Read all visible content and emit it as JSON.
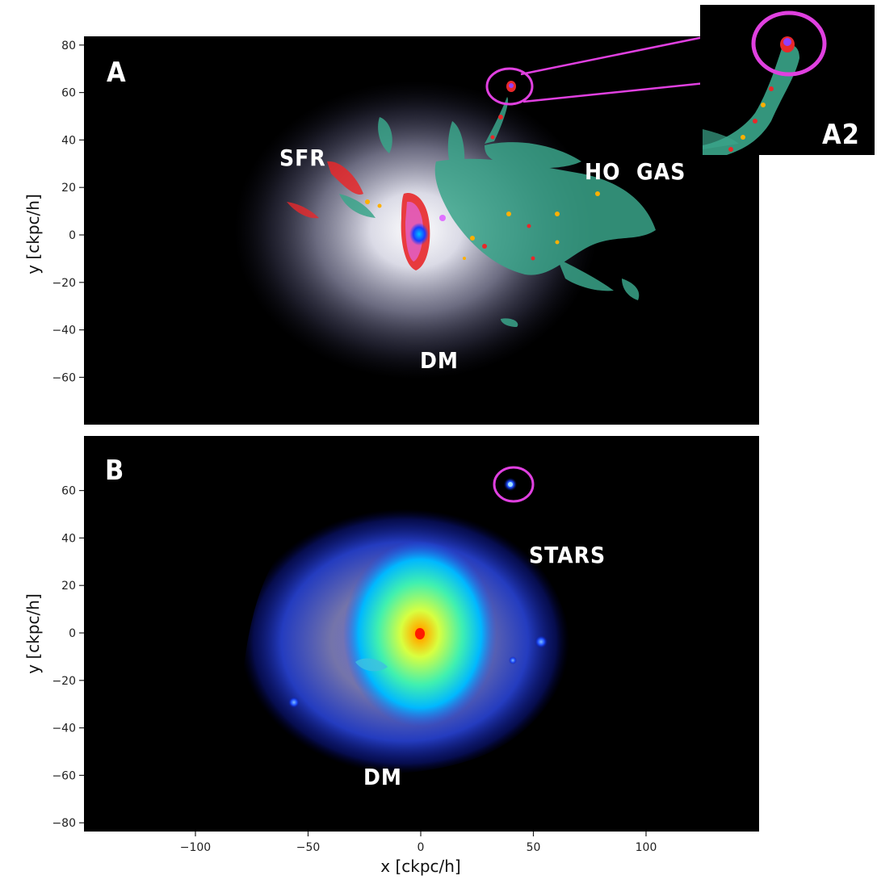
{
  "chart_data": [
    {
      "type": "heatmap",
      "panel_label": "A",
      "ylabel": "y [ckpc/h]",
      "xlim": [
        -150,
        150
      ],
      "ylim": [
        -80,
        83
      ],
      "yticks": [
        80,
        60,
        40,
        20,
        0,
        -20,
        -40,
        -60
      ],
      "annotations": [
        {
          "text": "SFR",
          "x": -53,
          "y": 34
        },
        {
          "text": "HO  GAS",
          "x": 72,
          "y": 27
        },
        {
          "text": "DM",
          "x": 7,
          "y": -51
        }
      ],
      "highlight_circle": {
        "x": 40,
        "y": 62
      },
      "colors": {
        "dm": "#d8d8ee",
        "gas": "#3aa58a",
        "sfr": "#e8282a",
        "core": "#1a3cff"
      }
    },
    {
      "type": "heatmap",
      "panel_label": "B",
      "xlabel": "x [ckpc/h]",
      "ylabel": "y [ckpc/h]",
      "xlim": [
        -150,
        150
      ],
      "ylim": [
        -83,
        83
      ],
      "xticks": [
        -100,
        -50,
        0,
        50,
        100
      ],
      "yticks": [
        60,
        40,
        20,
        0,
        -20,
        -40,
        -60,
        -80
      ],
      "annotations": [
        {
          "text": "STARS",
          "x": 63,
          "y": 33
        },
        {
          "text": "DM",
          "x": -18,
          "y": -59
        }
      ],
      "highlight_circle": {
        "x": 41,
        "y": 62
      },
      "colors": {
        "dm_halo": "#2a3cff",
        "stars": "#00e0ff",
        "core": "#ff2a00"
      }
    }
  ],
  "inset": {
    "label": "A2",
    "zoom_of": {
      "x": 40,
      "y": 62
    }
  }
}
